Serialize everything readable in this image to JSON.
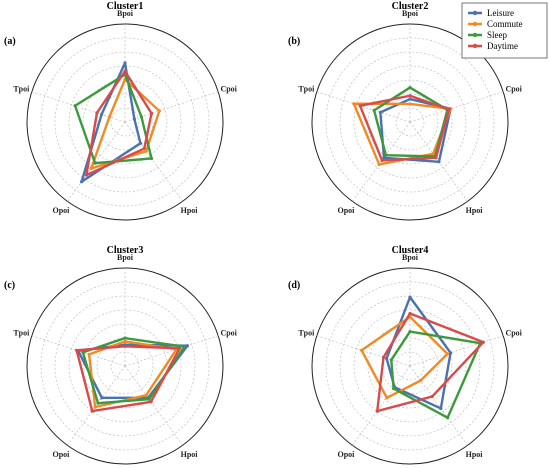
{
  "axes": [
    "Bpoi",
    "Cpoi",
    "Hpoi",
    "Opoi",
    "Tpoi"
  ],
  "legend": {
    "placement": "top-right",
    "entries": [
      {
        "name": "Leisure",
        "color": "#4a72b0"
      },
      {
        "name": "Commute",
        "color": "#f08a24"
      },
      {
        "name": "Sleep",
        "color": "#3c9a3c"
      },
      {
        "name": "Daytime",
        "color": "#d94a4a"
      }
    ]
  },
  "chart_data": [
    {
      "type": "radar",
      "panel_label": "(a)",
      "title": "Cluster1",
      "axes": [
        "Bpoi",
        "Cpoi",
        "Hpoi",
        "Opoi",
        "Tpoi"
      ],
      "grid": true,
      "range": [
        0,
        1
      ],
      "series": [
        {
          "name": "Leisure",
          "values": [
            0.72,
            0.12,
            0.32,
            0.9,
            0.3
          ]
        },
        {
          "name": "Commute",
          "values": [
            0.52,
            0.44,
            0.44,
            0.7,
            0.2
          ]
        },
        {
          "name": "Sleep",
          "values": [
            0.58,
            0.21,
            0.55,
            0.62,
            0.64
          ]
        },
        {
          "name": "Daytime",
          "values": [
            0.62,
            0.34,
            0.4,
            0.8,
            0.36
          ]
        }
      ]
    },
    {
      "type": "radar",
      "panel_label": "(b)",
      "title": "Cluster2",
      "axes": [
        "Bpoi",
        "Cpoi",
        "Hpoi",
        "Opoi",
        "Tpoi"
      ],
      "grid": true,
      "range": [
        0,
        1
      ],
      "series": [
        {
          "name": "Leisure",
          "values": [
            0.28,
            0.52,
            0.6,
            0.54,
            0.38
          ]
        },
        {
          "name": "Commute",
          "values": [
            0.22,
            0.52,
            0.48,
            0.64,
            0.72
          ]
        },
        {
          "name": "Sleep",
          "values": [
            0.42,
            0.48,
            0.52,
            0.5,
            0.46
          ]
        },
        {
          "name": "Daytime",
          "values": [
            0.32,
            0.5,
            0.54,
            0.58,
            0.64
          ]
        }
      ]
    },
    {
      "type": "radar",
      "panel_label": "(c)",
      "title": "Cluster3",
      "axes": [
        "Bpoi",
        "Cpoi",
        "Hpoi",
        "Opoi",
        "Tpoi"
      ],
      "grid": true,
      "range": [
        0,
        1
      ],
      "series": [
        {
          "name": "Leisure",
          "values": [
            0.26,
            0.8,
            0.48,
            0.48,
            0.6
          ]
        },
        {
          "name": "Commute",
          "values": [
            0.3,
            0.66,
            0.44,
            0.62,
            0.46
          ]
        },
        {
          "name": "Sleep",
          "values": [
            0.34,
            0.76,
            0.5,
            0.56,
            0.54
          ]
        },
        {
          "name": "Daytime",
          "values": [
            0.24,
            0.7,
            0.54,
            0.68,
            0.62
          ]
        }
      ]
    },
    {
      "type": "radar",
      "panel_label": "(d)",
      "title": "Cluster4",
      "axes": [
        "Bpoi",
        "Cpoi",
        "Hpoi",
        "Opoi",
        "Tpoi"
      ],
      "grid": true,
      "range": [
        0,
        1
      ],
      "series": [
        {
          "name": "Leisure",
          "values": [
            0.84,
            0.52,
            0.64,
            0.32,
            0.3
          ]
        },
        {
          "name": "Commute",
          "values": [
            0.6,
            0.48,
            0.22,
            0.48,
            0.62
          ]
        },
        {
          "name": "Sleep",
          "values": [
            0.42,
            0.9,
            0.78,
            0.34,
            0.24
          ]
        },
        {
          "name": "Daytime",
          "values": [
            0.64,
            0.94,
            0.46,
            0.68,
            0.34
          ]
        }
      ]
    }
  ]
}
